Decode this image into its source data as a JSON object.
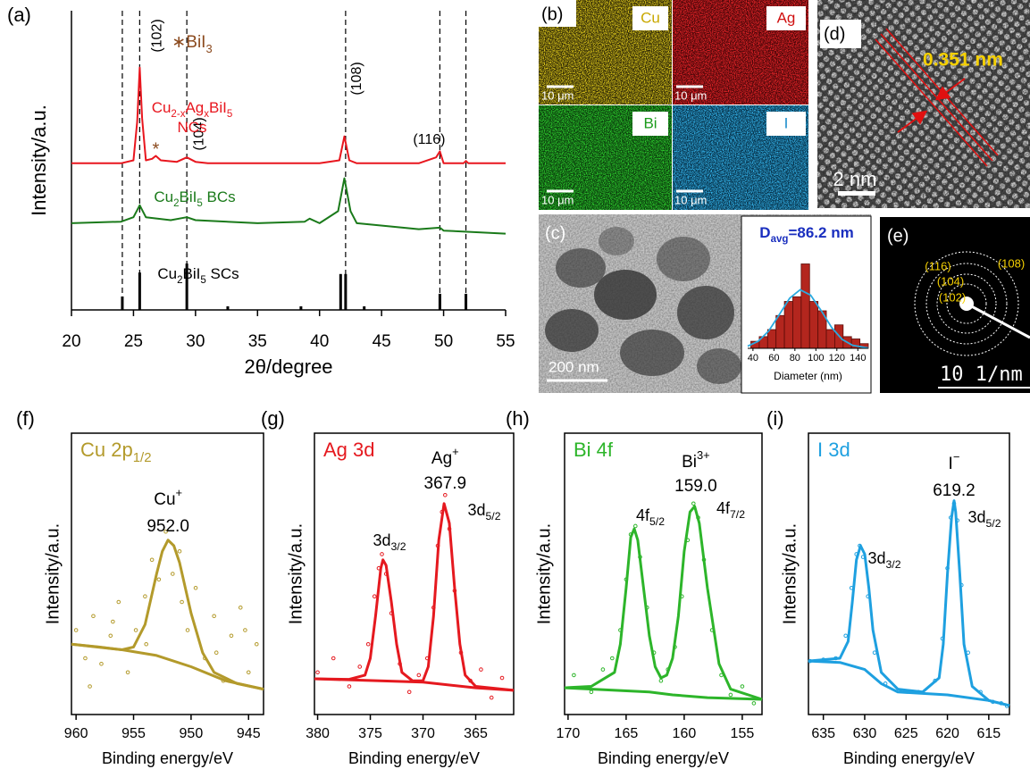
{
  "panel_labels": [
    "(a)",
    "(b)",
    "(c)",
    "(d)",
    "(e)",
    "(f)",
    "(g)",
    "(h)",
    "(i)"
  ],
  "chart_data": [
    {
      "type": "line",
      "x_label": "2θ/degree",
      "y_label": "Intensity/a.u.",
      "xlim": [
        20,
        55
      ],
      "xticks": [
        20,
        25,
        30,
        35,
        40,
        45,
        50,
        55
      ],
      "ylim": [
        0,
        100
      ],
      "reference_lines": [
        {
          "value": 24.1
        },
        {
          "value": 25.5,
          "label": "(102)"
        },
        {
          "value": 29.3,
          "label": "(104)"
        },
        {
          "value": 42.1,
          "label": "(108)"
        },
        {
          "value": 49.7,
          "label": "(116)"
        },
        {
          "value": 51.8
        }
      ],
      "series": [
        {
          "name_lines": [
            [
              "Cu",
              "2-x",
              "Ag",
              "x",
              "BiI",
              "5"
            ],
            [
              "NCs"
            ]
          ],
          "color": "#e8161e",
          "mode": "line",
          "x": [
            20,
            24,
            25,
            25.3,
            25.5,
            25.7,
            26,
            26.5,
            26.8,
            27.2,
            28.5,
            29.3,
            30,
            31,
            35,
            40,
            41.6,
            42,
            42.4,
            43,
            48,
            49.4,
            49.7,
            50,
            51.6,
            51.8,
            52,
            55
          ],
          "values": [
            49,
            49,
            50,
            63,
            81,
            64,
            50,
            50.5,
            51.5,
            50,
            49.5,
            51,
            49.5,
            49,
            49,
            49,
            50,
            58,
            50,
            49,
            49,
            51,
            53,
            49,
            49,
            49.8,
            49,
            49
          ]
        },
        {
          "name_lines": [
            [
              "Cu",
              "2",
              "BiI",
              "5",
              " BCs"
            ]
          ],
          "color": "#1a7a1a",
          "mode": "line",
          "x": [
            20,
            24,
            25,
            25.5,
            26,
            28,
            29.3,
            30,
            35,
            38.8,
            39.2,
            40,
            41.5,
            42,
            42.5,
            43,
            48,
            49.7,
            50,
            55
          ],
          "values": [
            29,
            29.5,
            31,
            35,
            31,
            30,
            31,
            30,
            29,
            29.5,
            30.5,
            29,
            33,
            44,
            33,
            29,
            27,
            27.5,
            26.5,
            25.5
          ]
        }
      ],
      "reference_pattern": {
        "name_parts": [
          "Cu",
          "2",
          "BiI",
          "5",
          " SCs"
        ],
        "color": "#000000",
        "x": [
          24.1,
          25.5,
          29.3,
          32.6,
          38.5,
          41.7,
          42.1,
          43.6,
          49.7,
          51.8
        ],
        "values": [
          4.5,
          12.5,
          15.5,
          1.2,
          1.2,
          12,
          12,
          1.2,
          5.4,
          5.4
        ]
      },
      "impurity": {
        "marker": "*",
        "x": 26.8,
        "legend_parts": [
          "∗BiI",
          "3"
        ],
        "color": "#8b4a1e"
      }
    },
    {
      "type": "histogram",
      "title_parts": [
        "D",
        "avg",
        "=86.2 nm"
      ],
      "x_label": "Diameter (nm)",
      "bins": [
        38,
        46,
        54,
        62,
        70,
        78,
        86,
        94,
        102,
        110,
        118,
        126,
        134,
        142,
        150
      ],
      "values": [
        3,
        5,
        8,
        14,
        20,
        22,
        36,
        20,
        16,
        8,
        10,
        5,
        4,
        2
      ],
      "color": "#b3261e",
      "xlim": [
        35,
        150
      ],
      "xticks": [
        40,
        60,
        80,
        100,
        120,
        140
      ],
      "ylim": [
        0,
        40
      ],
      "fit": {
        "color": "#29a9e0",
        "x": [
          35,
          45,
          55,
          65,
          75,
          85,
          95,
          105,
          115,
          125,
          135,
          150
        ],
        "values": [
          0.9,
          3,
          7.4,
          14.3,
          21.4,
          25,
          22.7,
          16.1,
          8.9,
          3.8,
          1.3,
          0.15
        ]
      }
    },
    {
      "type": "line",
      "title_parts": [
        "Cu 2p",
        "1/2"
      ],
      "x_label": "Binding energy/eV",
      "y_label": "Intensity/a.u.",
      "xlim": [
        960.4,
        943.7
      ],
      "xticks": [
        960,
        955,
        950,
        945
      ],
      "ylim": [
        0,
        100
      ],
      "color": "#b39a2b",
      "peak": {
        "ion_parts": [
          "Cu",
          "+"
        ],
        "energy": {
          "value": 952.0,
          "label": "952.0"
        }
      },
      "components": [],
      "series": [
        {
          "mode": "markers",
          "color": "#b39a2b",
          "x": [
            960,
            959.2,
            958.5,
            957.8,
            957,
            956.3,
            955.5,
            954.8,
            954,
            953.4,
            952.8,
            952.2,
            951.6,
            951,
            950.3,
            949.6,
            948.8,
            948,
            947.2,
            946.5,
            945.7,
            945,
            944.3,
            958.8,
            956.8,
            953.9,
            950.8,
            947.8,
            945.3
          ],
          "values": [
            30,
            20,
            35,
            18,
            28,
            40,
            15,
            30,
            42,
            55,
            48,
            65,
            50,
            58,
            30,
            45,
            20,
            35,
            12,
            28,
            38,
            15,
            25,
            10,
            33,
            25,
            40,
            22,
            30
          ]
        },
        {
          "mode": "line",
          "color": "#b39a2b",
          "x": [
            960.4,
            958,
            956,
            955,
            954,
            953,
            952.5,
            952,
            951.5,
            951,
            950,
            949,
            948,
            946,
            943.7
          ],
          "values": [
            25,
            24,
            23,
            24,
            32,
            50,
            58,
            62,
            60,
            54,
            36,
            22,
            15,
            11,
            9
          ]
        },
        {
          "mode": "line",
          "color": "#b39a2b",
          "x": [
            960.4,
            956,
            953,
            950,
            947,
            943.7
          ],
          "values": [
            25,
            23,
            21,
            17,
            12,
            9
          ]
        }
      ]
    },
    {
      "type": "line",
      "title_parts": [
        "Ag 3d"
      ],
      "x_label": "Binding energy/eV",
      "y_label": "Intensity/a.u.",
      "xlim": [
        380.3,
        361.4
      ],
      "xticks": [
        380,
        375,
        370,
        365
      ],
      "ylim": [
        0,
        100
      ],
      "color": "#e5191f",
      "peak": {
        "ion_parts": [
          "Ag",
          "+"
        ],
        "energy": {
          "value": 367.9,
          "label": "367.9"
        }
      },
      "components": [
        {
          "parts": [
            "3d",
            "3/2"
          ]
        },
        {
          "parts": [
            "3d",
            "5/2"
          ]
        }
      ],
      "series": [
        {
          "mode": "markers",
          "color": "#e5191f",
          "x": [
            380,
            378.5,
            377,
            376,
            375.2,
            374.6,
            374.2,
            373.9,
            373.5,
            373,
            372.2,
            371.3,
            370.4,
            369.6,
            369,
            368.6,
            368.2,
            367.9,
            367.5,
            367,
            366.4,
            365.5,
            364.5,
            363.5,
            362.5
          ],
          "values": [
            15,
            20,
            10,
            17,
            25,
            42,
            52,
            57,
            50,
            36,
            18,
            8,
            14,
            20,
            38,
            60,
            72,
            78,
            66,
            44,
            22,
            12,
            16,
            6,
            13
          ]
        },
        {
          "mode": "line",
          "color": "#e5191f",
          "x": [
            380.3,
            377,
            375.5,
            375,
            374.5,
            374,
            373.8,
            373.5,
            373,
            372.5,
            372,
            371,
            370,
            369.5,
            369,
            368.5,
            368,
            367.5,
            367,
            366.5,
            366,
            365,
            361.4
          ],
          "values": [
            12.7,
            12.5,
            14,
            20,
            35,
            52,
            55,
            53,
            40,
            25,
            15,
            12,
            12,
            17,
            35,
            62,
            75,
            68,
            45,
            25,
            14,
            10,
            8.6
          ]
        },
        {
          "mode": "line",
          "color": "#e5191f",
          "x": [
            380.3,
            370,
            365,
            361.4
          ],
          "values": [
            12.7,
            11.5,
            9.5,
            8.6
          ]
        }
      ]
    },
    {
      "type": "line",
      "title_parts": [
        "Bi 4f"
      ],
      "x_label": "Binding energy/eV",
      "y_label": "Intensity/a.u.",
      "xlim": [
        170.3,
        153.3
      ],
      "xticks": [
        170,
        165,
        160,
        155
      ],
      "ylim": [
        0,
        100
      ],
      "color": "#2db52a",
      "peak": {
        "ion_parts": [
          "Bi",
          "3+"
        ],
        "energy": {
          "value": 159.0,
          "label": "159.0"
        }
      },
      "components": [
        {
          "parts": [
            "4f",
            "5/2"
          ]
        },
        {
          "parts": [
            "4f",
            "7/2"
          ]
        }
      ],
      "series": [
        {
          "mode": "markers",
          "color": "#2db52a",
          "x": [
            169.5,
            168,
            167,
            166.2,
            165.5,
            165,
            164.6,
            164.2,
            163.8,
            163.2,
            162.6,
            162,
            161.4,
            160.8,
            160.2,
            159.7,
            159.2,
            158.8,
            158.3,
            157.6,
            156.8,
            156,
            155,
            154
          ],
          "values": [
            14,
            8,
            16,
            20,
            30,
            48,
            64,
            67,
            56,
            38,
            22,
            12,
            16,
            24,
            42,
            62,
            75,
            70,
            55,
            30,
            14,
            7,
            10,
            4
          ]
        },
        {
          "mode": "line",
          "color": "#2db52a",
          "x": [
            170.3,
            168,
            166,
            165.5,
            165,
            164.6,
            164.3,
            164,
            163.5,
            163,
            162.5,
            162,
            161.5,
            161,
            160.5,
            160,
            159.5,
            159.1,
            158.7,
            158,
            157,
            156,
            153.3
          ],
          "values": [
            9.5,
            10,
            15,
            25,
            45,
            63,
            66,
            62,
            45,
            28,
            17,
            13,
            14,
            20,
            35,
            58,
            72,
            74,
            68,
            45,
            18,
            9,
            5.4
          ]
        },
        {
          "mode": "line",
          "color": "#2db52a",
          "x": [
            170.3,
            163,
            161,
            158,
            153.3
          ],
          "values": [
            9.5,
            8,
            7,
            6,
            5.4
          ]
        }
      ]
    },
    {
      "type": "line",
      "title_parts": [
        "I 3d"
      ],
      "x_label": "Binding energy/eV",
      "y_label": "Intensity/a.u.",
      "xlim": [
        636.8,
        612.5
      ],
      "xticks": [
        635,
        630,
        625,
        620,
        615
      ],
      "ylim": [
        0,
        100
      ],
      "color": "#1ea0e0",
      "peak": {
        "ion_parts": [
          "I",
          "−"
        ],
        "energy": {
          "value": 619.2,
          "label": "619.2"
        }
      },
      "components": [
        {
          "parts": [
            "3d",
            "3/2"
          ]
        },
        {
          "parts": [
            "3d",
            "5/2"
          ]
        }
      ],
      "series": [
        {
          "mode": "markers",
          "color": "#1ea0e0",
          "x": [
            636.6,
            635,
            633.5,
            632.3,
            631.6,
            631,
            630.6,
            630.2,
            629.6,
            628.8,
            627.5,
            625.5,
            623.5,
            621.5,
            620.6,
            620,
            619.6,
            619.2,
            618.8,
            618.3,
            617.5,
            616,
            614.5,
            613.5,
            612.8
          ],
          "values": [
            19,
            19.5,
            20,
            28,
            45,
            57,
            60,
            56,
            42,
            22,
            11,
            8.5,
            8,
            12,
            27,
            52,
            70,
            75,
            69,
            46,
            22,
            8,
            4.5,
            4,
            3
          ]
        },
        {
          "mode": "line",
          "color": "#1ea0e0",
          "x": [
            636.8,
            633,
            632,
            631.5,
            631,
            630.5,
            630,
            629.5,
            629,
            628,
            626,
            623,
            621,
            620.5,
            620,
            619.5,
            619.2,
            619,
            618.5,
            618,
            617,
            615,
            612.5
          ],
          "values": [
            19,
            20,
            26,
            40,
            55,
            60,
            57,
            45,
            30,
            15,
            9,
            8,
            13,
            25,
            50,
            70,
            76,
            72,
            50,
            25,
            10,
            5,
            3.2
          ]
        },
        {
          "mode": "line",
          "color": "#1ea0e0",
          "x": [
            636.8,
            633,
            630,
            628,
            626,
            620,
            615,
            612.5
          ],
          "values": [
            19,
            18.5,
            16,
            11,
            8,
            7,
            5,
            3.2
          ]
        }
      ]
    }
  ],
  "images": {
    "b": {
      "maps": [
        {
          "element": "Cu",
          "scale_bar": "10 μm"
        },
        {
          "element": "Ag",
          "scale_bar": "10 μm"
        },
        {
          "element": "Bi",
          "scale_bar": "10 μm"
        },
        {
          "element": "I",
          "scale_bar": "10 μm"
        }
      ]
    },
    "c": {
      "scale_bar": "200 nm"
    },
    "d": {
      "spacing": "0.351 nm",
      "scale_bar": "2 nm"
    },
    "e": {
      "rings": [
        "(116)",
        "(108)",
        "(104)",
        "(102)"
      ],
      "scale_bar": "10 1/nm"
    }
  }
}
